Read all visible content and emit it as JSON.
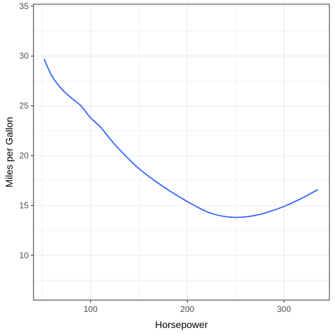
{
  "chart_data": {
    "type": "line",
    "title": "",
    "xlabel": "Horsepower",
    "ylabel": "Miles per Gallon",
    "xlim": [
      41,
      347
    ],
    "ylim": [
      5.5,
      35.2
    ],
    "x_ticks": [
      100,
      200,
      300
    ],
    "y_ticks": [
      10,
      15,
      20,
      25,
      30,
      35
    ],
    "grid": true,
    "legend": "none",
    "series": [
      {
        "color": "#3366ff",
        "x": [
          52,
          60,
          70,
          80,
          90,
          100,
          110,
          120,
          130,
          150,
          175,
          200,
          225,
          250,
          275,
          300,
          320,
          335
        ],
        "y": [
          29.7,
          28.0,
          26.7,
          25.8,
          25.0,
          23.8,
          22.9,
          21.7,
          20.6,
          18.7,
          16.9,
          15.4,
          14.2,
          13.8,
          14.1,
          14.9,
          15.8,
          16.6
        ]
      }
    ],
    "colors": {
      "panel_border": "#333333",
      "grid": "#ebebeb",
      "tick_label": "#4d4d4d"
    }
  }
}
